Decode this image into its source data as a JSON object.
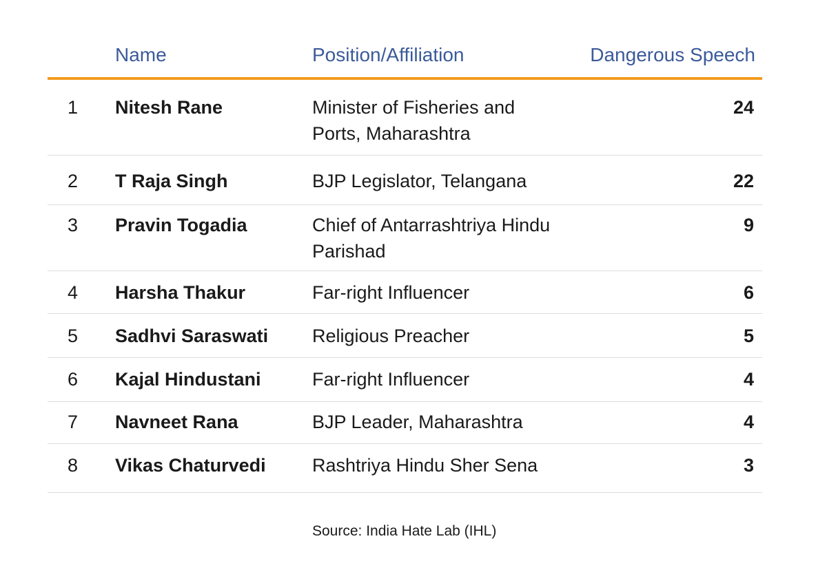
{
  "header": {
    "name": "Name",
    "position": "Position/Affiliation",
    "count": "Dangerous Speech"
  },
  "rows": [
    {
      "rank": "1",
      "name": "Nitesh Rane",
      "position": "Minister of Fisheries and Ports, Maharashtra",
      "count": "24"
    },
    {
      "rank": "2",
      "name": "T Raja Singh",
      "position": "BJP Legislator, Telangana",
      "count": "22"
    },
    {
      "rank": "3",
      "name": "Pravin Togadia",
      "position": "Chief of Antarrashtriya Hindu Parishad",
      "count": "9"
    },
    {
      "rank": "4",
      "name": "Harsha Thakur",
      "position": "Far-right Influencer",
      "count": "6"
    },
    {
      "rank": "5",
      "name": "Sadhvi Saraswati",
      "position": "Religious Preacher",
      "count": "5"
    },
    {
      "rank": "6",
      "name": "Kajal Hindustani",
      "position": "Far-right Influencer",
      "count": "4"
    },
    {
      "rank": "7",
      "name": "Navneet Rana",
      "position": "BJP Leader, Maharashtra",
      "count": "4"
    },
    {
      "rank": "8",
      "name": "Vikas Chaturvedi",
      "position": "Rashtriya Hindu Sher Sena",
      "count": "3"
    }
  ],
  "source": "Source: India Hate Lab (IHL)",
  "colors": {
    "header_text": "#3b5a9a",
    "header_rule": "#f39a1e",
    "row_rule": "#dcdcdc"
  }
}
